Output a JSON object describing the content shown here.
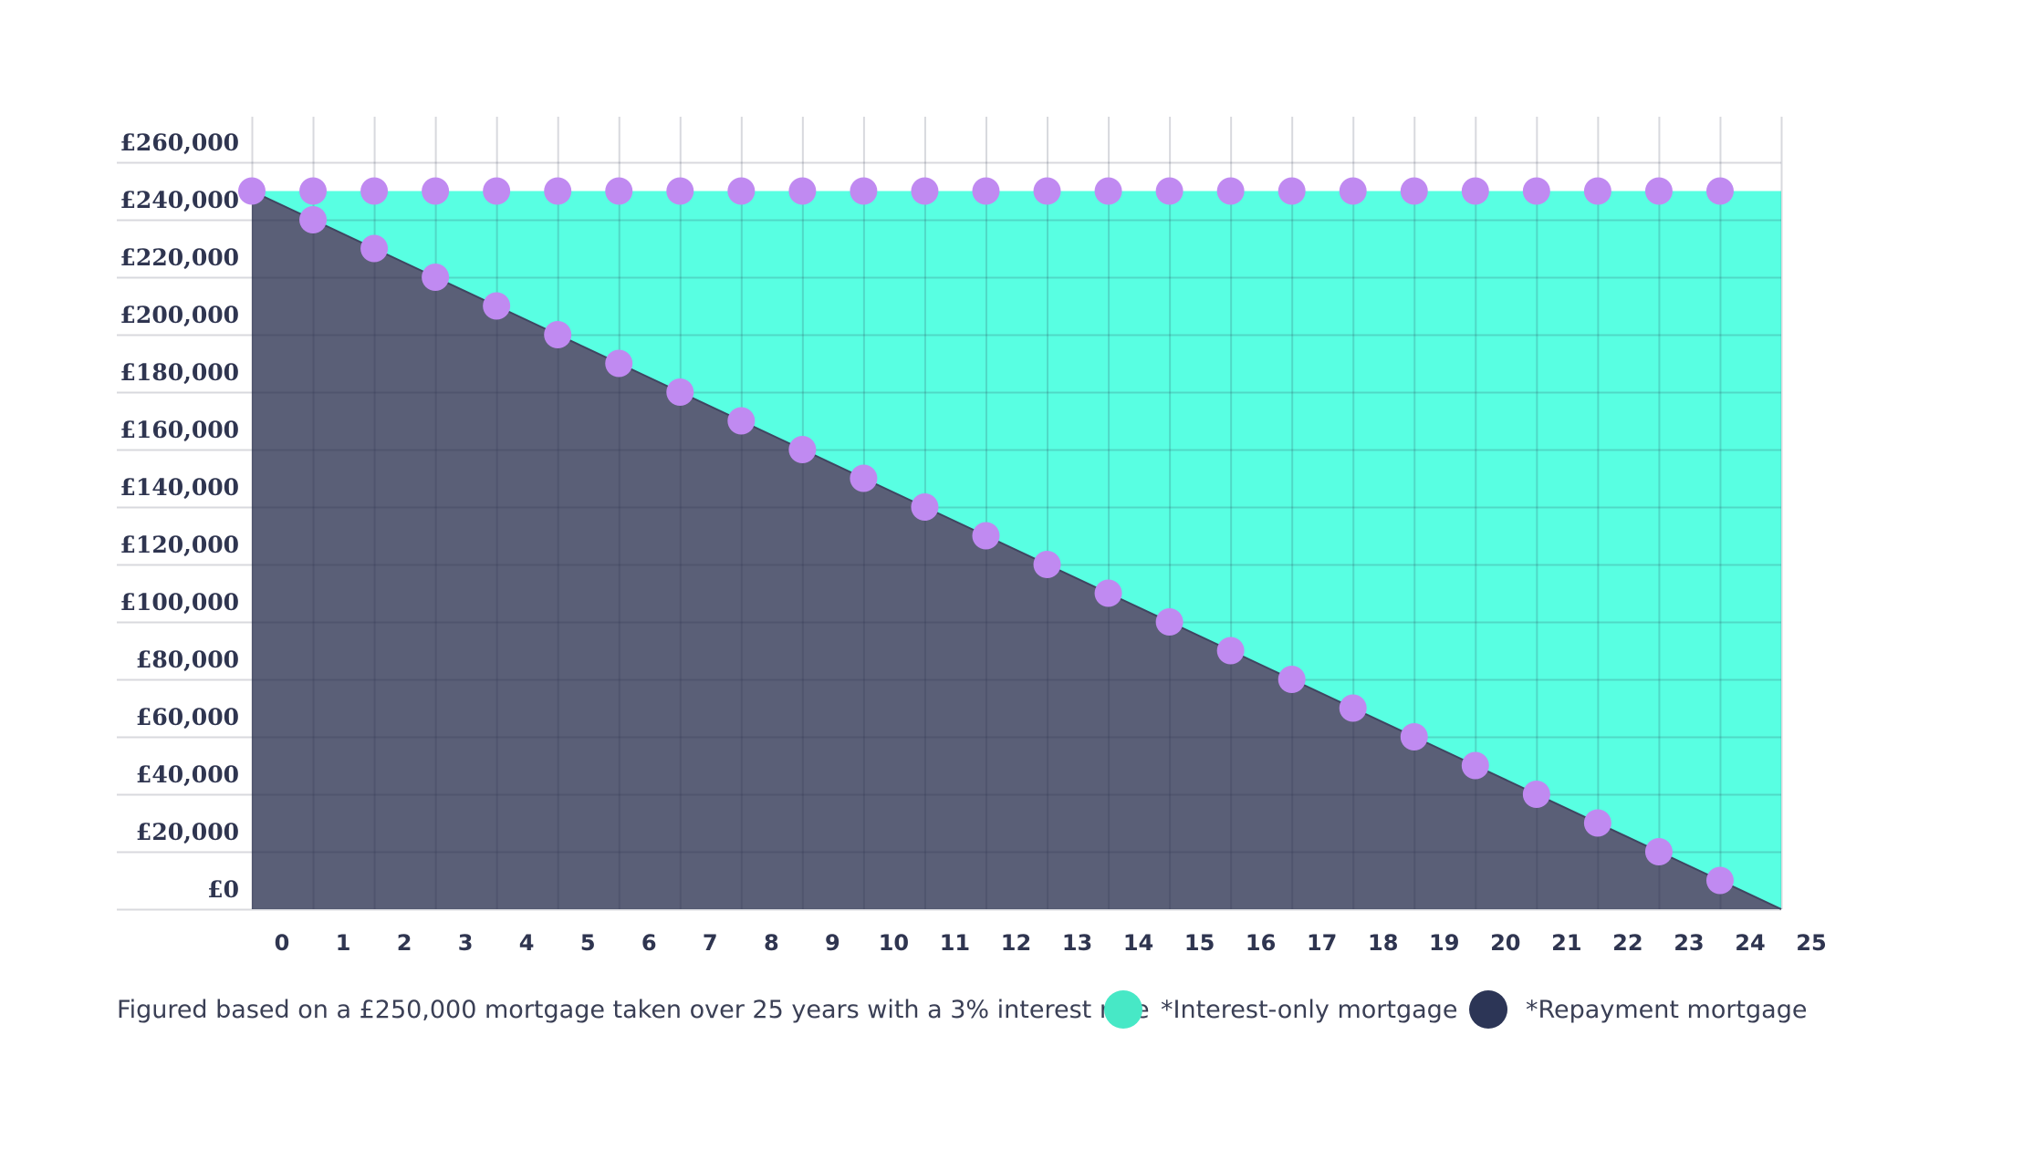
{
  "chart_data": {
    "type": "area",
    "x": [
      0,
      1,
      2,
      3,
      4,
      5,
      6,
      7,
      8,
      9,
      10,
      11,
      12,
      13,
      14,
      15,
      16,
      17,
      18,
      19,
      20,
      21,
      22,
      23,
      24,
      25
    ],
    "series": [
      {
        "name": "*Interest-only mortgage",
        "color": "#58ffe2",
        "values": [
          250000,
          250000,
          250000,
          250000,
          250000,
          250000,
          250000,
          250000,
          250000,
          250000,
          250000,
          250000,
          250000,
          250000,
          250000,
          250000,
          250000,
          250000,
          250000,
          250000,
          250000,
          250000,
          250000,
          250000,
          250000,
          250000
        ]
      },
      {
        "name": "*Repayment mortgage",
        "color": "#5a5f77",
        "values": [
          250000,
          240000,
          230000,
          220000,
          210000,
          200000,
          190000,
          180000,
          170000,
          160000,
          150000,
          140000,
          130000,
          120000,
          110000,
          100000,
          90000,
          80000,
          70000,
          60000,
          50000,
          40000,
          30000,
          20000,
          10000,
          0
        ]
      }
    ],
    "marker_color": "#c08af1",
    "y_ticks": [
      "£0",
      "£20,000",
      "£40,000",
      "£60,000",
      "£80,000",
      "£100,000",
      "£120,000",
      "£140,000",
      "£160,000",
      "£180,000",
      "£200,000",
      "£220,000",
      "£240,000",
      "£260,000"
    ],
    "x_ticks": [
      "0",
      "1",
      "2",
      "3",
      "4",
      "5",
      "6",
      "7",
      "8",
      "9",
      "10",
      "11",
      "12",
      "13",
      "14",
      "15",
      "16",
      "17",
      "18",
      "19",
      "20",
      "21",
      "22",
      "23",
      "24",
      "25"
    ],
    "ylim": [
      0,
      260000
    ],
    "xlim": [
      0,
      25
    ],
    "grid": true,
    "legend_position": "bottom-right"
  },
  "note": "Figured based on a £250,000 mortgage taken over 25 years with a 3% interest rate",
  "legend": [
    {
      "label": "*Interest-only mortgage",
      "color": "#47e8c6"
    },
    {
      "label": "*Repayment mortgage",
      "color": "#2c3556"
    }
  ]
}
